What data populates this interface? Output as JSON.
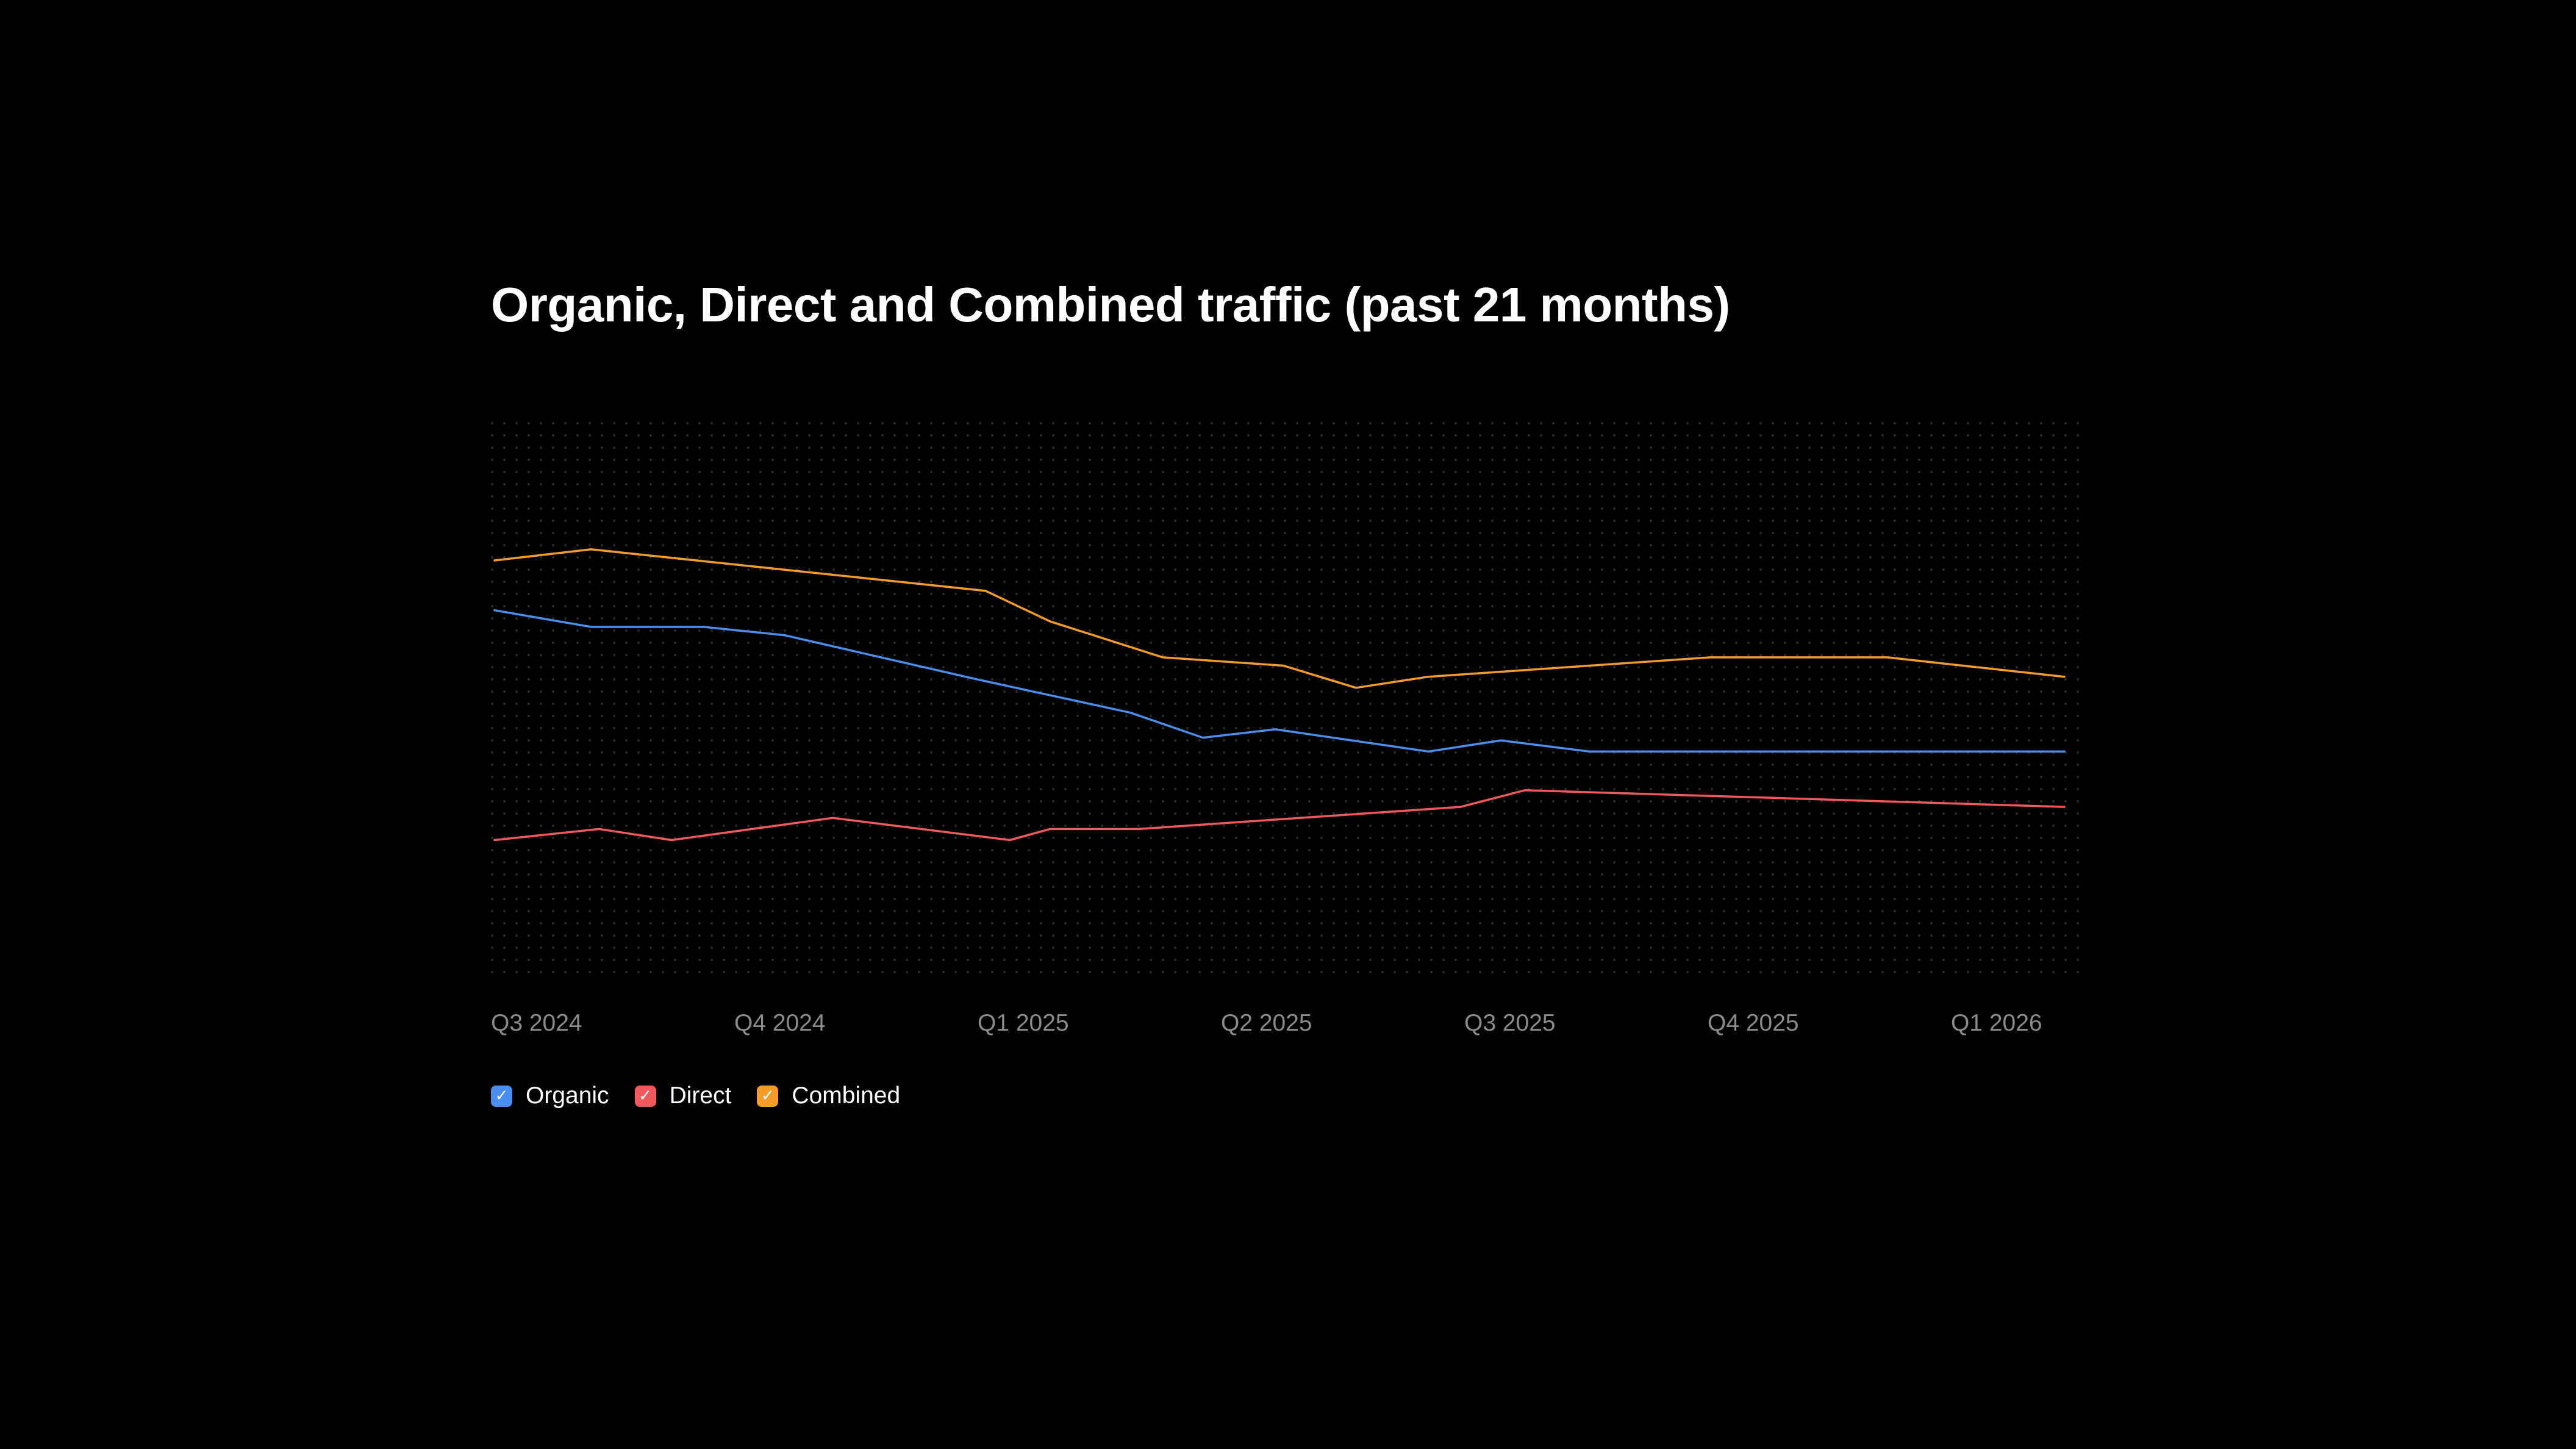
{
  "colors": {
    "background": "#000000",
    "organic": "#4a8ff0",
    "direct": "#f2595c",
    "combined": "#f59b2a",
    "grid_dot": "#2a2a2a",
    "tick_label": "#8c8c8c",
    "title": "#ffffff"
  },
  "chart_data": {
    "type": "line",
    "title": "Organic, Direct and Combined traffic (past 21 months)",
    "xlabel": "",
    "ylabel": "",
    "x_tick_labels": [
      "Q3 2024",
      "Q4 2024",
      "Q1 2025",
      "Q2 2025",
      "Q3 2025",
      "Q4 2025",
      "Q1 2026"
    ],
    "x_unit": "months since Q3 2024",
    "xlim": [
      0,
      19.6
    ],
    "ylim": [
      0,
      100
    ],
    "grid": "dotted",
    "legend_position": "bottom-left",
    "series": [
      {
        "name": "Organic",
        "color_key": "organic",
        "points": [
          [
            0,
            66
          ],
          [
            1.2,
            63
          ],
          [
            2.6,
            63
          ],
          [
            3.6,
            61.5
          ],
          [
            6.0,
            53.5
          ],
          [
            7.9,
            47.5
          ],
          [
            8.8,
            43
          ],
          [
            9.7,
            44.5
          ],
          [
            11.6,
            40.5
          ],
          [
            12.5,
            42.5
          ],
          [
            13.6,
            40.5
          ],
          [
            19.5,
            40.5
          ]
        ]
      },
      {
        "name": "Direct",
        "color_key": "direct",
        "points": [
          [
            0,
            24.5
          ],
          [
            1.3,
            26.5
          ],
          [
            2.2,
            24.5
          ],
          [
            4.2,
            28.5
          ],
          [
            6.4,
            24.5
          ],
          [
            6.9,
            26.5
          ],
          [
            8.0,
            26.5
          ],
          [
            12.0,
            30.5
          ],
          [
            12.8,
            33.5
          ],
          [
            19.5,
            30.5
          ]
        ]
      },
      {
        "name": "Combined",
        "color_key": "combined",
        "points": [
          [
            0,
            75
          ],
          [
            1.2,
            77
          ],
          [
            6.1,
            69.5
          ],
          [
            6.9,
            64
          ],
          [
            8.3,
            57.5
          ],
          [
            9.8,
            56
          ],
          [
            10.7,
            52
          ],
          [
            11.6,
            54
          ],
          [
            15.1,
            57.5
          ],
          [
            17.3,
            57.5
          ],
          [
            19.5,
            54
          ]
        ]
      }
    ]
  },
  "legend": {
    "organic_label": "Organic",
    "direct_label": "Direct",
    "combined_label": "Combined",
    "check_glyph": "✓"
  }
}
